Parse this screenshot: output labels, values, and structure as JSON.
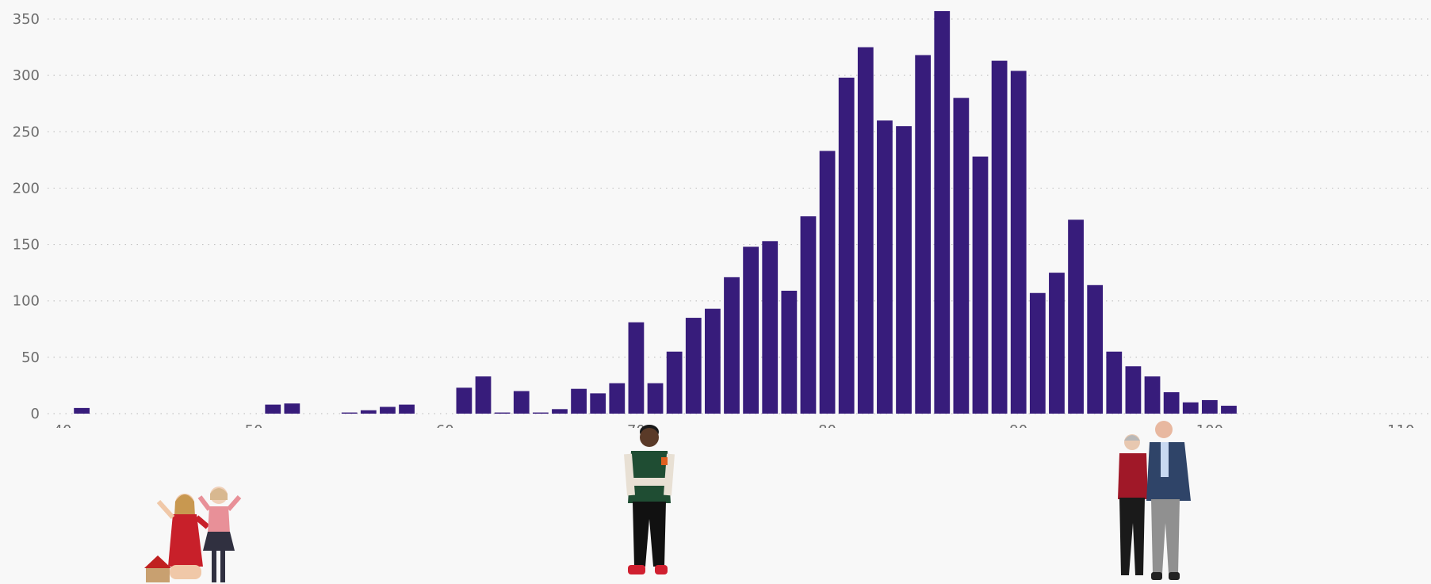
{
  "chart_data": {
    "type": "bar",
    "title": "",
    "xlabel": "",
    "ylabel": "",
    "xlim": [
      40,
      110
    ],
    "ylim": [
      0,
      350
    ],
    "x_ticks": [
      40,
      50,
      60,
      70,
      80,
      90,
      100,
      110
    ],
    "y_ticks": [
      0,
      50,
      100,
      150,
      200,
      250,
      300,
      350
    ],
    "grid": "horizontal-dotted",
    "bar_color": "#371c7b",
    "x": [
      41,
      51,
      52,
      55,
      56,
      57,
      58,
      61,
      62,
      63,
      64,
      65,
      66,
      67,
      68,
      69,
      70,
      71,
      72,
      73,
      74,
      75,
      76,
      77,
      78,
      79,
      80,
      81,
      82,
      83,
      84,
      85,
      86,
      87,
      88,
      89,
      90,
      91,
      92,
      93,
      94,
      95,
      96,
      97,
      98,
      99,
      100,
      101
    ],
    "values": [
      5,
      8,
      9,
      1,
      3,
      6,
      8,
      23,
      33,
      1,
      20,
      1,
      4,
      22,
      18,
      27,
      81,
      27,
      55,
      85,
      93,
      121,
      148,
      153,
      109,
      175,
      233,
      298,
      325,
      260,
      255,
      318,
      357,
      280,
      228,
      313,
      304,
      107,
      125,
      172,
      114,
      55,
      42,
      33,
      19,
      10,
      12,
      7
    ]
  },
  "figures": [
    {
      "name": "children-figure",
      "x": 47
    },
    {
      "name": "young-man-figure",
      "x": 70.7
    },
    {
      "name": "older-couple-figure",
      "x": 96.2
    }
  ]
}
